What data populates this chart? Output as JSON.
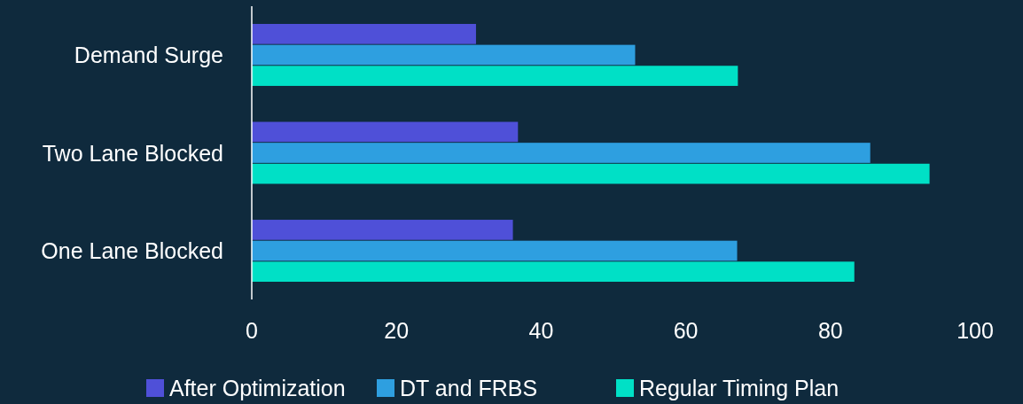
{
  "chart_data": {
    "type": "bar",
    "orientation": "horizontal",
    "categories": [
      "Demand Surge",
      "Two Lane Blocked",
      "One Lane Blocked"
    ],
    "series": [
      {
        "name": "After Optimization",
        "color": "#4f50d8",
        "values": [
          31,
          36.8,
          36.1
        ]
      },
      {
        "name": "DT and FRBS",
        "color": "#2e9fe0",
        "values": [
          53,
          85.5,
          67.1
        ]
      },
      {
        "name": "Regular Timing Plan",
        "color": "#00e0c6",
        "values": [
          67.2,
          93.7,
          83.3
        ]
      }
    ],
    "xlim": [
      0,
      100
    ],
    "xticks": [
      0,
      20,
      40,
      60,
      80,
      100
    ],
    "grid": false,
    "legend": "bottom"
  }
}
